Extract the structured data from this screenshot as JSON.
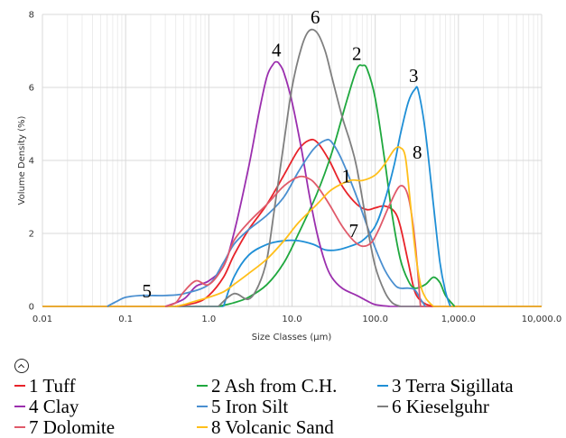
{
  "chart_data": {
    "type": "line",
    "xlabel": "Size Classes (μm)",
    "ylabel": "Volume Density (%)",
    "xscale": "log",
    "xlim": [
      0.01,
      10000
    ],
    "ylim": [
      0,
      8
    ],
    "x_ticks": [
      "0.01",
      "0.1",
      "1.0",
      "10.0",
      "100.0",
      "1,000.0",
      "10,000.0"
    ],
    "y_ticks": [
      "0",
      "2",
      "4",
      "6",
      "8"
    ],
    "series": [
      {
        "name": "1 Tuff",
        "label": "1",
        "color": "#e8232a",
        "x": [
          0.4,
          0.7,
          1,
          1.5,
          2,
          3,
          5,
          8,
          12,
          16,
          20,
          28,
          40,
          60,
          80,
          100,
          130,
          170,
          200,
          250,
          300,
          380,
          500
        ],
        "y": [
          0,
          0.1,
          0.3,
          0.8,
          1.4,
          2.1,
          2.8,
          3.6,
          4.3,
          4.55,
          4.5,
          4.0,
          3.3,
          2.8,
          2.65,
          2.7,
          2.75,
          2.6,
          2.2,
          1.2,
          0.4,
          0.1,
          0
        ]
      },
      {
        "name": "2 Ash from C.H.",
        "label": "2",
        "color": "#1fa83e",
        "x": [
          1.3,
          2,
          3,
          5,
          8,
          12,
          20,
          30,
          45,
          60,
          70,
          80,
          100,
          130,
          160,
          200,
          250,
          300,
          400,
          500,
          600,
          700,
          900
        ],
        "y": [
          0,
          0.1,
          0.25,
          0.6,
          1.2,
          2.0,
          3.1,
          4.2,
          5.6,
          6.5,
          6.6,
          6.5,
          5.7,
          4.0,
          2.5,
          1.3,
          0.7,
          0.5,
          0.6,
          0.8,
          0.65,
          0.3,
          0
        ]
      },
      {
        "name": "3 Terra Sigillata",
        "label": "3",
        "color": "#1f8fd6",
        "x": [
          1.5,
          2,
          3,
          5,
          8,
          12,
          18,
          25,
          35,
          50,
          70,
          100,
          130,
          170,
          200,
          250,
          300,
          330,
          400,
          500,
          600,
          700,
          800
        ],
        "y": [
          0,
          0.8,
          1.4,
          1.7,
          1.8,
          1.8,
          1.7,
          1.55,
          1.55,
          1.65,
          1.8,
          2.2,
          2.9,
          3.9,
          4.7,
          5.6,
          5.95,
          5.9,
          4.8,
          2.8,
          1.2,
          0.4,
          0
        ]
      },
      {
        "name": "4 Clay",
        "label": "4",
        "color": "#9b2fae",
        "x": [
          0.3,
          0.5,
          0.7,
          1,
          1.5,
          2,
          3,
          4,
          5,
          6,
          6.5,
          7,
          8,
          10,
          13,
          16,
          20,
          25,
          30,
          40,
          60,
          80,
          100,
          150
        ],
        "y": [
          0,
          0.2,
          0.55,
          0.7,
          1.1,
          2.0,
          3.8,
          5.3,
          6.3,
          6.65,
          6.7,
          6.65,
          6.4,
          5.6,
          4.3,
          3.1,
          2.0,
          1.2,
          0.8,
          0.5,
          0.3,
          0.15,
          0.05,
          0
        ]
      },
      {
        "name": "5 Iron Silt",
        "label": "5",
        "color": "#4a8fd0",
        "x": [
          0.06,
          0.08,
          0.1,
          0.15,
          0.2,
          0.3,
          0.5,
          1,
          1.5,
          2,
          3,
          5,
          8,
          12,
          18,
          25,
          30,
          40,
          60,
          80,
          100,
          130,
          170,
          200,
          250,
          300,
          350,
          400
        ],
        "y": [
          0,
          0.15,
          0.25,
          0.3,
          0.3,
          0.3,
          0.35,
          0.6,
          1.2,
          1.7,
          2.1,
          2.5,
          3.0,
          3.7,
          4.3,
          4.55,
          4.5,
          4.0,
          3.0,
          2.2,
          1.6,
          1.0,
          0.6,
          0.5,
          0.5,
          0.45,
          0.2,
          0
        ]
      },
      {
        "name": "6 Kieselguhr",
        "label": "6",
        "color": "#7f7f7f",
        "x": [
          1.3,
          2,
          3,
          4,
          5,
          6,
          8,
          10,
          13,
          16,
          20,
          25,
          30,
          40,
          50,
          60,
          80,
          100,
          130,
          160,
          200
        ],
        "y": [
          0,
          0.35,
          0.2,
          0.6,
          1.3,
          2.5,
          4.5,
          6.0,
          7.1,
          7.55,
          7.5,
          7.0,
          6.3,
          5.2,
          4.5,
          3.8,
          2.2,
          1.1,
          0.4,
          0.1,
          0
        ]
      },
      {
        "name": "7 Dolomite",
        "label": "7",
        "color": "#e05a6a",
        "x": [
          0.3,
          0.4,
          0.5,
          0.7,
          1,
          1.5,
          2,
          3,
          5,
          8,
          12,
          16,
          20,
          28,
          40,
          55,
          70,
          90,
          110,
          150,
          200,
          250,
          300,
          350
        ],
        "y": [
          0,
          0.1,
          0.4,
          0.7,
          0.6,
          1.1,
          1.8,
          2.3,
          2.8,
          3.3,
          3.55,
          3.5,
          3.3,
          2.8,
          2.2,
          1.8,
          1.65,
          1.75,
          2.1,
          2.8,
          3.3,
          3.0,
          1.8,
          0
        ]
      },
      {
        "name": "8 Volcanic Sand",
        "label": "8",
        "color": "#ffbf1a",
        "x": [
          0.4,
          0.5,
          0.7,
          1,
          1.5,
          2,
          3,
          5,
          8,
          12,
          20,
          30,
          50,
          70,
          100,
          130,
          170,
          200,
          230,
          260,
          300,
          350,
          400,
          450,
          500
        ],
        "y": [
          0,
          0.05,
          0.15,
          0.25,
          0.4,
          0.6,
          0.9,
          1.3,
          1.8,
          2.3,
          2.8,
          3.2,
          3.45,
          3.45,
          3.6,
          3.9,
          4.3,
          4.35,
          4.1,
          3.0,
          1.6,
          0.6,
          0.25,
          0.1,
          0
        ]
      }
    ],
    "legend": {
      "placement": "bottom"
    }
  }
}
